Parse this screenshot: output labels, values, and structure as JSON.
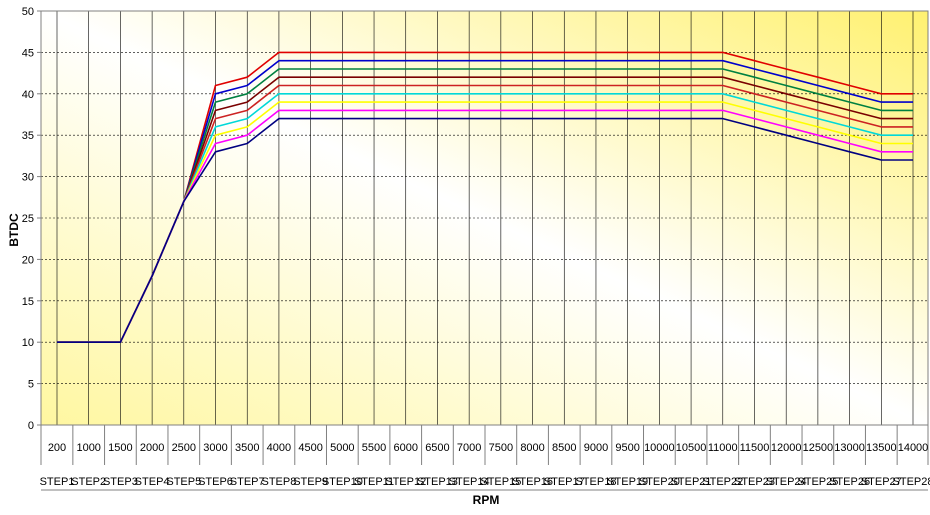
{
  "chart_data": {
    "type": "line",
    "title": "",
    "xlabel": "RPM",
    "ylabel": "BTDC",
    "ylim": [
      0,
      50
    ],
    "yticks": [
      0,
      5,
      10,
      15,
      20,
      25,
      30,
      35,
      40,
      45,
      50
    ],
    "grid": true,
    "legend": "none",
    "background_gradient": [
      "#fff7a0",
      "#ffffff",
      "#fff170"
    ],
    "categories": [
      "200",
      "1000",
      "1500",
      "2000",
      "2500",
      "3000",
      "3500",
      "4000",
      "4500",
      "5000",
      "5500",
      "6000",
      "6500",
      "7000",
      "7500",
      "8000",
      "8500",
      "9000",
      "9500",
      "10000",
      "10500",
      "11000",
      "11500",
      "12000",
      "12500",
      "13000",
      "13500",
      "14000"
    ],
    "step_labels": [
      "STEP1",
      "STEP2",
      "STEP3",
      "STEP4",
      "STEP5",
      "STEP6",
      "STEP7",
      "STEP8",
      "STEP9",
      "STEP10",
      "STEP11",
      "STEP12",
      "STEP13",
      "STEP14",
      "STEP15",
      "STEP16",
      "STEP17",
      "STEP18",
      "STEP19",
      "STEP20",
      "STEP21",
      "STEP22",
      "STEP23",
      "STEP24",
      "STEP25",
      "STEP26",
      "STEP27",
      "STEP28"
    ],
    "series": [
      {
        "color": "#e00000",
        "values": [
          10,
          10,
          10,
          18,
          27,
          41,
          42,
          45,
          45,
          45,
          45,
          45,
          45,
          45,
          45,
          45,
          45,
          45,
          45,
          45,
          45,
          45,
          44,
          43,
          42,
          41,
          40,
          40
        ]
      },
      {
        "color": "#0000cc",
        "values": [
          10,
          10,
          10,
          18,
          27,
          40,
          41,
          44,
          44,
          44,
          44,
          44,
          44,
          44,
          44,
          44,
          44,
          44,
          44,
          44,
          44,
          44,
          43,
          42,
          41,
          40,
          39,
          39
        ]
      },
      {
        "color": "#008040",
        "values": [
          10,
          10,
          10,
          18,
          27,
          39,
          40,
          43,
          43,
          43,
          43,
          43,
          43,
          43,
          43,
          43,
          43,
          43,
          43,
          43,
          43,
          43,
          42,
          41,
          40,
          39,
          38,
          38
        ]
      },
      {
        "color": "#7a0000",
        "values": [
          10,
          10,
          10,
          18,
          27,
          38,
          39,
          42,
          42,
          42,
          42,
          42,
          42,
          42,
          42,
          42,
          42,
          42,
          42,
          42,
          42,
          42,
          41,
          40,
          39,
          38,
          37,
          37
        ]
      },
      {
        "color": "#cc2222",
        "values": [
          10,
          10,
          10,
          18,
          27,
          37,
          38,
          41,
          41,
          41,
          41,
          41,
          41,
          41,
          41,
          41,
          41,
          41,
          41,
          41,
          41,
          41,
          40,
          39,
          38,
          37,
          36,
          36
        ]
      },
      {
        "color": "#00d8d8",
        "values": [
          10,
          10,
          10,
          18,
          27,
          36,
          37,
          40,
          40,
          40,
          40,
          40,
          40,
          40,
          40,
          40,
          40,
          40,
          40,
          40,
          40,
          40,
          39,
          38,
          37,
          36,
          35,
          35
        ]
      },
      {
        "color": "#ffff00",
        "values": [
          10,
          10,
          10,
          18,
          27,
          35,
          36,
          39,
          39,
          39,
          39,
          39,
          39,
          39,
          39,
          39,
          39,
          39,
          39,
          39,
          39,
          39,
          38,
          37,
          36,
          35,
          34,
          34
        ]
      },
      {
        "color": "#ff00ff",
        "values": [
          10,
          10,
          10,
          18,
          27,
          34,
          35,
          38,
          38,
          38,
          38,
          38,
          38,
          38,
          38,
          38,
          38,
          38,
          38,
          38,
          38,
          38,
          37,
          36,
          35,
          34,
          33,
          33
        ]
      },
      {
        "color": "#000080",
        "values": [
          10,
          10,
          10,
          18,
          27,
          33,
          34,
          37,
          37,
          37,
          37,
          37,
          37,
          37,
          37,
          37,
          37,
          37,
          37,
          37,
          37,
          37,
          36,
          35,
          34,
          33,
          32,
          32
        ]
      }
    ]
  }
}
